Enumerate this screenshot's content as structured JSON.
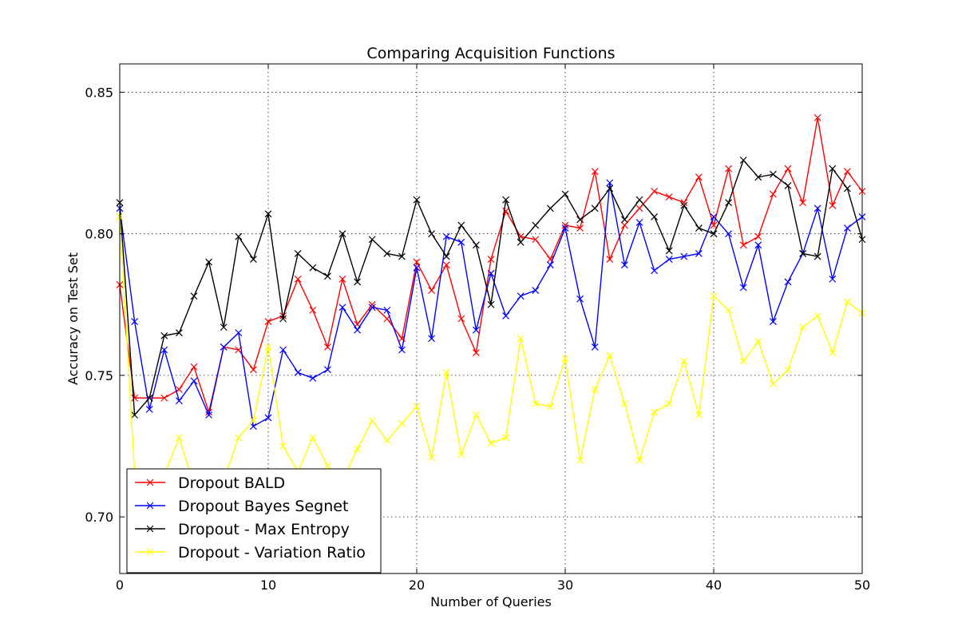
{
  "chart_data": {
    "type": "line",
    "title": "Comparing Acquisition Functions",
    "xlabel": "Number of Queries",
    "ylabel": "Accuracy on Test Set",
    "xlim": [
      0,
      50
    ],
    "ylim": [
      0.68,
      0.86
    ],
    "xticks": [
      "0",
      "10",
      "20",
      "30",
      "40",
      "50"
    ],
    "yticks": [
      "0.70",
      "0.75",
      "0.80",
      "0.85"
    ],
    "grid": true,
    "legend_position": "lower-left",
    "series": [
      {
        "name": "Dropout BALD",
        "color": "#ff0000",
        "marker": "x",
        "x": [
          0,
          1,
          2,
          3,
          4,
          5,
          6,
          7,
          8,
          9,
          10,
          11,
          12,
          13,
          14,
          15,
          16,
          17,
          18,
          19,
          20,
          21,
          22,
          23,
          24,
          25,
          26,
          27,
          28,
          29,
          30,
          31,
          32,
          33,
          34,
          35,
          36,
          37,
          38,
          39,
          40,
          41,
          42,
          43,
          44,
          45,
          46,
          47,
          48,
          49,
          50
        ],
        "values": [
          0.782,
          0.742,
          0.742,
          0.742,
          0.745,
          0.753,
          0.737,
          0.76,
          0.759,
          0.752,
          0.769,
          0.771,
          0.784,
          0.773,
          0.76,
          0.784,
          0.768,
          0.775,
          0.77,
          0.763,
          0.79,
          0.78,
          0.789,
          0.77,
          0.758,
          0.791,
          0.808,
          0.799,
          0.798,
          0.791,
          0.803,
          0.802,
          0.822,
          0.791,
          0.803,
          0.809,
          0.815,
          0.813,
          0.811,
          0.82,
          0.803,
          0.823,
          0.796,
          0.799,
          0.814,
          0.823,
          0.811,
          0.841,
          0.81,
          0.822,
          0.815
        ]
      },
      {
        "name": "Dropout Bayes Segnet",
        "color": "#0000ff",
        "marker": "x",
        "x": [
          0,
          1,
          2,
          3,
          4,
          5,
          6,
          7,
          8,
          9,
          10,
          11,
          12,
          13,
          14,
          15,
          16,
          17,
          18,
          19,
          20,
          21,
          22,
          23,
          24,
          25,
          26,
          27,
          28,
          29,
          30,
          31,
          32,
          33,
          34,
          35,
          36,
          37,
          38,
          39,
          40,
          41,
          42,
          43,
          44,
          45,
          46,
          47,
          48,
          49,
          50
        ],
        "values": [
          0.809,
          0.769,
          0.738,
          0.759,
          0.741,
          0.748,
          0.736,
          0.76,
          0.765,
          0.732,
          0.735,
          0.759,
          0.751,
          0.749,
          0.752,
          0.774,
          0.766,
          0.774,
          0.773,
          0.759,
          0.788,
          0.763,
          0.799,
          0.797,
          0.766,
          0.786,
          0.771,
          0.778,
          0.78,
          0.789,
          0.802,
          0.777,
          0.76,
          0.818,
          0.789,
          0.804,
          0.787,
          0.791,
          0.792,
          0.793,
          0.806,
          0.8,
          0.781,
          0.796,
          0.769,
          0.783,
          0.793,
          0.809,
          0.784,
          0.802,
          0.806
        ]
      },
      {
        "name": "Dropout - Max Entropy",
        "color": "#000000",
        "marker": "x",
        "x": [
          0,
          1,
          2,
          3,
          4,
          5,
          6,
          7,
          8,
          9,
          10,
          11,
          12,
          13,
          14,
          15,
          16,
          17,
          18,
          19,
          20,
          21,
          22,
          23,
          24,
          25,
          26,
          27,
          28,
          29,
          30,
          31,
          32,
          33,
          34,
          35,
          36,
          37,
          38,
          39,
          40,
          41,
          42,
          43,
          44,
          45,
          46,
          47,
          48,
          49,
          50
        ],
        "values": [
          0.811,
          0.736,
          0.742,
          0.764,
          0.765,
          0.778,
          0.79,
          0.767,
          0.799,
          0.791,
          0.807,
          0.77,
          0.793,
          0.788,
          0.785,
          0.8,
          0.783,
          0.798,
          0.793,
          0.792,
          0.812,
          0.8,
          0.792,
          0.803,
          0.796,
          0.775,
          0.812,
          0.797,
          0.803,
          0.809,
          0.814,
          0.805,
          0.809,
          0.816,
          0.805,
          0.812,
          0.806,
          0.794,
          0.81,
          0.802,
          0.8,
          0.811,
          0.826,
          0.82,
          0.821,
          0.817,
          0.793,
          0.792,
          0.823,
          0.816,
          0.798
        ]
      },
      {
        "name": "Dropout - Variation Ratio",
        "color": "#ffff00",
        "marker": "x",
        "x": [
          0,
          1,
          2,
          3,
          4,
          5,
          6,
          7,
          8,
          9,
          10,
          11,
          12,
          13,
          14,
          15,
          16,
          17,
          18,
          19,
          20,
          21,
          22,
          23,
          24,
          25,
          26,
          27,
          28,
          29,
          30,
          31,
          32,
          33,
          34,
          35,
          36,
          37,
          38,
          39,
          40,
          41,
          42,
          43,
          44,
          45,
          46,
          47,
          48,
          49,
          50
        ],
        "values": [
          0.806,
          0.716,
          0.71,
          0.715,
          0.728,
          0.711,
          0.708,
          0.713,
          0.728,
          0.734,
          0.76,
          0.725,
          0.716,
          0.728,
          0.718,
          0.713,
          0.724,
          0.734,
          0.727,
          0.733,
          0.739,
          0.721,
          0.751,
          0.722,
          0.736,
          0.726,
          0.728,
          0.763,
          0.74,
          0.739,
          0.756,
          0.72,
          0.745,
          0.757,
          0.74,
          0.72,
          0.737,
          0.74,
          0.755,
          0.736,
          0.778,
          0.773,
          0.755,
          0.762,
          0.747,
          0.752,
          0.767,
          0.771,
          0.758,
          0.776,
          0.772
        ]
      }
    ]
  }
}
